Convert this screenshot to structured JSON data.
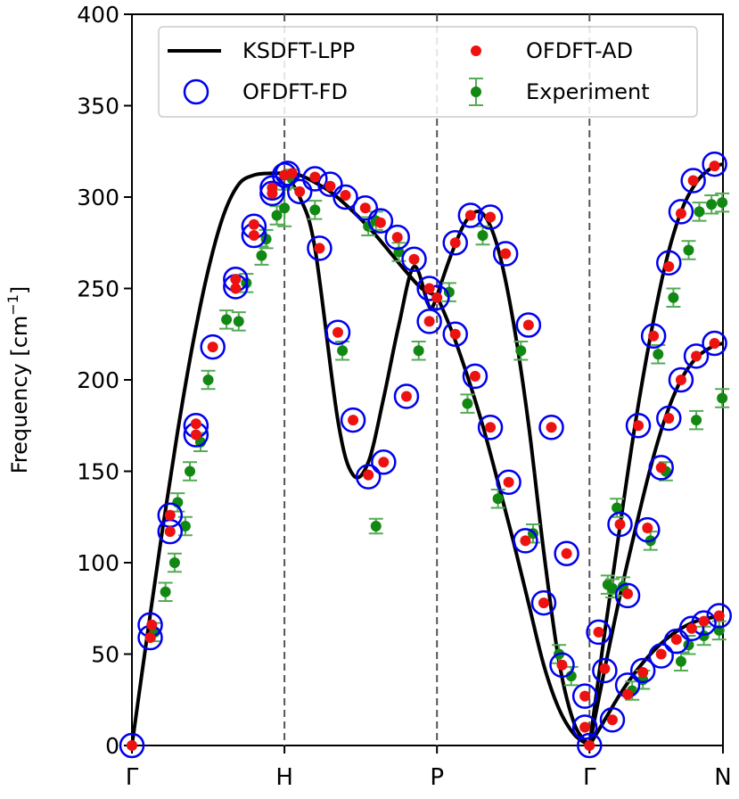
{
  "chart_data": {
    "type": "line",
    "title": "",
    "xlabel": "",
    "ylabel": "Frequency [cm",
    "ylabel_sup": "−1",
    "ylabel_suffix": "]",
    "ylim": [
      0,
      400
    ],
    "xlim": [
      0,
      3.875
    ],
    "yticks": [
      0,
      50,
      100,
      150,
      200,
      250,
      300,
      350,
      400
    ],
    "ytick_labels": [
      "0",
      "50",
      "100",
      "150",
      "200",
      "250",
      "300",
      "350",
      "400"
    ],
    "xticks": [
      0,
      1,
      2,
      3,
      3.875
    ],
    "xtick_labels": [
      "Γ",
      "H",
      "P",
      "Γ",
      "N"
    ],
    "vlines": [
      1,
      2,
      3
    ],
    "legend": {
      "position": "top",
      "entries": [
        {
          "label": "KSDFT-LPP",
          "style": "line"
        },
        {
          "label": "OFDFT-AD",
          "style": "dot"
        },
        {
          "label": "OFDFT-FD",
          "style": "circle"
        },
        {
          "label": "Experiment",
          "style": "errorbar"
        }
      ]
    },
    "series": [
      {
        "name": "KSDFT-LPP",
        "color": "#000000",
        "branches": [
          {
            "x": [
              0,
              0.1,
              0.2,
              0.3,
              0.4,
              0.5,
              0.6,
              0.7,
              0.8,
              0.9,
              1.0
            ],
            "y": [
              0,
              60,
              118,
              172,
              220,
              260,
              290,
              307,
              312,
              313,
              313
            ]
          },
          {
            "x": [
              1.0,
              1.1,
              1.2,
              1.3,
              1.4,
              1.5,
              1.6,
              1.7,
              1.8,
              1.9,
              2.0
            ],
            "y": [
              313,
              312,
              308,
              303,
              296,
              288,
              279,
              269,
              259,
              250,
              246
            ]
          },
          {
            "x": [
              1.0,
              1.1,
              1.2,
              1.35,
              1.45,
              1.55,
              1.65,
              1.75,
              1.85,
              1.95,
              2.0
            ],
            "y": [
              313,
              300,
              272,
              178,
              148,
              155,
              190,
              230,
              262,
              240,
              246
            ]
          },
          {
            "x": [
              2.0,
              2.1,
              2.2,
              2.3,
              2.4,
              2.5,
              2.6,
              2.7,
              2.8,
              2.9,
              3.0
            ],
            "y": [
              246,
              270,
              288,
              291,
              272,
              232,
              176,
              106,
              46,
              12,
              0
            ]
          },
          {
            "x": [
              2.0,
              2.1,
              2.2,
              2.3,
              2.4,
              2.5,
              2.6,
              2.7,
              2.8,
              2.9,
              3.0
            ],
            "y": [
              246,
              226,
              202,
              175,
              144,
              112,
              78,
              44,
              20,
              6,
              0
            ]
          },
          {
            "x": [
              3.0,
              3.1,
              3.2,
              3.3,
              3.4,
              3.5,
              3.6,
              3.7,
              3.8,
              3.875
            ],
            "y": [
              0,
              62,
              120,
              176,
              224,
              264,
              292,
              308,
              316,
              318
            ]
          },
          {
            "x": [
              3.0,
              3.1,
              3.2,
              3.3,
              3.4,
              3.5,
              3.6,
              3.7,
              3.8,
              3.875
            ],
            "y": [
              0,
              42,
              82,
              118,
              152,
              180,
              200,
              212,
              218,
              220
            ]
          },
          {
            "x": [
              3.0,
              3.1,
              3.2,
              3.3,
              3.4,
              3.5,
              3.6,
              3.7,
              3.8,
              3.875
            ],
            "y": [
              0,
              14,
              28,
              40,
              50,
              58,
              64,
              68,
              70,
              71
            ]
          }
        ]
      },
      {
        "name": "OFDFT-FD",
        "color": "#0000ee",
        "points": [
          [
            0,
            0
          ],
          [
            0.12,
            66
          ],
          [
            0.12,
            59
          ],
          [
            0.25,
            126
          ],
          [
            0.25,
            117
          ],
          [
            0.42,
            175
          ],
          [
            0.42,
            170
          ],
          [
            0.53,
            218
          ],
          [
            0.68,
            255
          ],
          [
            0.68,
            251
          ],
          [
            0.8,
            284
          ],
          [
            0.8,
            279
          ],
          [
            0.92,
            305
          ],
          [
            0.92,
            302
          ],
          [
            1.0,
            312
          ],
          [
            1.02,
            313
          ],
          [
            1.1,
            303
          ],
          [
            1.2,
            310
          ],
          [
            1.3,
            307
          ],
          [
            1.4,
            300
          ],
          [
            1.53,
            294
          ],
          [
            1.63,
            287
          ],
          [
            1.74,
            278
          ],
          [
            1.85,
            266
          ],
          [
            1.95,
            250
          ],
          [
            1.23,
            272
          ],
          [
            1.35,
            226
          ],
          [
            1.45,
            178
          ],
          [
            1.55,
            147
          ],
          [
            1.65,
            155
          ],
          [
            1.8,
            191
          ],
          [
            1.95,
            232
          ],
          [
            2.0,
            245
          ],
          [
            2.12,
            275
          ],
          [
            2.22,
            290
          ],
          [
            2.35,
            289
          ],
          [
            2.45,
            269
          ],
          [
            2.6,
            230
          ],
          [
            2.75,
            174
          ],
          [
            2.85,
            105
          ],
          [
            2.97,
            27
          ],
          [
            2.12,
            225
          ],
          [
            2.25,
            202
          ],
          [
            2.35,
            174
          ],
          [
            2.47,
            144
          ],
          [
            2.58,
            112
          ],
          [
            2.7,
            78
          ],
          [
            2.82,
            44
          ],
          [
            2.97,
            10
          ],
          [
            3.0,
            0
          ],
          [
            3.06,
            62
          ],
          [
            3.1,
            41
          ],
          [
            3.15,
            14
          ],
          [
            3.2,
            121
          ],
          [
            3.25,
            82
          ],
          [
            3.32,
            175
          ],
          [
            3.38,
            118
          ],
          [
            3.42,
            224
          ],
          [
            3.47,
            152
          ],
          [
            3.52,
            264
          ],
          [
            3.52,
            179
          ],
          [
            3.6,
            292
          ],
          [
            3.6,
            200
          ],
          [
            3.68,
            309
          ],
          [
            3.7,
            213
          ],
          [
            3.82,
            318
          ],
          [
            3.82,
            220
          ],
          [
            3.25,
            33
          ],
          [
            3.35,
            41
          ],
          [
            3.47,
            49
          ],
          [
            3.57,
            57
          ],
          [
            3.67,
            64
          ],
          [
            3.75,
            67
          ],
          [
            3.85,
            71
          ]
        ]
      },
      {
        "name": "OFDFT-AD",
        "color": "#ee1111",
        "points": [
          [
            0,
            0
          ],
          [
            0.12,
            59
          ],
          [
            0.13,
            66
          ],
          [
            0.25,
            126
          ],
          [
            0.25,
            117
          ],
          [
            0.42,
            176
          ],
          [
            0.42,
            170
          ],
          [
            0.53,
            218
          ],
          [
            0.68,
            255
          ],
          [
            0.68,
            250
          ],
          [
            0.8,
            285
          ],
          [
            0.8,
            279
          ],
          [
            0.92,
            305
          ],
          [
            0.92,
            302
          ],
          [
            1.0,
            312
          ],
          [
            1.05,
            313
          ],
          [
            1.1,
            303
          ],
          [
            1.2,
            311
          ],
          [
            1.3,
            306
          ],
          [
            1.4,
            301
          ],
          [
            1.53,
            294
          ],
          [
            1.63,
            286
          ],
          [
            1.74,
            278
          ],
          [
            1.85,
            266
          ],
          [
            1.95,
            250
          ],
          [
            1.23,
            272
          ],
          [
            1.35,
            226
          ],
          [
            1.45,
            178
          ],
          [
            1.55,
            148
          ],
          [
            1.65,
            155
          ],
          [
            1.8,
            191
          ],
          [
            1.95,
            232
          ],
          [
            2.0,
            245
          ],
          [
            2.12,
            275
          ],
          [
            2.22,
            290
          ],
          [
            2.35,
            289
          ],
          [
            2.45,
            269
          ],
          [
            2.6,
            230
          ],
          [
            2.75,
            174
          ],
          [
            2.85,
            105
          ],
          [
            2.97,
            27
          ],
          [
            2.12,
            225
          ],
          [
            2.25,
            202
          ],
          [
            2.35,
            174
          ],
          [
            2.47,
            144
          ],
          [
            2.58,
            112
          ],
          [
            2.7,
            78
          ],
          [
            2.82,
            44
          ],
          [
            2.97,
            10
          ],
          [
            3.0,
            0
          ],
          [
            3.06,
            62
          ],
          [
            3.1,
            42
          ],
          [
            3.15,
            14
          ],
          [
            3.2,
            121
          ],
          [
            3.25,
            83
          ],
          [
            3.32,
            175
          ],
          [
            3.38,
            119
          ],
          [
            3.42,
            224
          ],
          [
            3.47,
            152
          ],
          [
            3.52,
            262
          ],
          [
            3.52,
            179
          ],
          [
            3.6,
            291
          ],
          [
            3.6,
            200
          ],
          [
            3.68,
            309
          ],
          [
            3.7,
            213
          ],
          [
            3.82,
            317
          ],
          [
            3.82,
            220
          ],
          [
            3.25,
            28
          ],
          [
            3.35,
            40
          ],
          [
            3.47,
            50
          ],
          [
            3.57,
            58
          ],
          [
            3.67,
            64
          ],
          [
            3.75,
            68
          ],
          [
            3.85,
            71
          ]
        ]
      },
      {
        "name": "Experiment",
        "color": "#118811",
        "errbar_color": "#55aa55",
        "points": [
          [
            0.15,
            62,
            5
          ],
          [
            0.22,
            84,
            5
          ],
          [
            0.28,
            100,
            5
          ],
          [
            0.3,
            133,
            5
          ],
          [
            0.35,
            120,
            5
          ],
          [
            0.38,
            150,
            5
          ],
          [
            0.45,
            166,
            5
          ],
          [
            0.5,
            200,
            5
          ],
          [
            0.62,
            233,
            5
          ],
          [
            0.7,
            232,
            5
          ],
          [
            0.75,
            253,
            5
          ],
          [
            0.85,
            268,
            5
          ],
          [
            0.88,
            277,
            5
          ],
          [
            0.95,
            290,
            5
          ],
          [
            1.0,
            294,
            10
          ],
          [
            1.05,
            310,
            5
          ],
          [
            1.2,
            293,
            5
          ],
          [
            1.38,
            216,
            5
          ],
          [
            1.55,
            284,
            5
          ],
          [
            1.6,
            287,
            5
          ],
          [
            1.75,
            270,
            5
          ],
          [
            1.88,
            216,
            5
          ],
          [
            1.6,
            120,
            4
          ],
          [
            2.08,
            248,
            5
          ],
          [
            2.2,
            187,
            5
          ],
          [
            2.3,
            279,
            5
          ],
          [
            2.4,
            135,
            5
          ],
          [
            2.55,
            216,
            5
          ],
          [
            2.63,
            116,
            5
          ],
          [
            2.8,
            50,
            5
          ],
          [
            2.88,
            38,
            5
          ],
          [
            3.12,
            88,
            5
          ],
          [
            3.15,
            86,
            5
          ],
          [
            3.18,
            130,
            5
          ],
          [
            3.22,
            87,
            5
          ],
          [
            3.28,
            30,
            5
          ],
          [
            3.35,
            36,
            5
          ],
          [
            3.4,
            112,
            5
          ],
          [
            3.45,
            214,
            5
          ],
          [
            3.5,
            150,
            5
          ],
          [
            3.55,
            245,
            5
          ],
          [
            3.6,
            46,
            5
          ],
          [
            3.65,
            271,
            5
          ],
          [
            3.65,
            55,
            5
          ],
          [
            3.7,
            178,
            5
          ],
          [
            3.72,
            292,
            5
          ],
          [
            3.75,
            60,
            5
          ],
          [
            3.8,
            296,
            5
          ],
          [
            3.85,
            63,
            5
          ],
          [
            3.87,
            190,
            5
          ],
          [
            3.87,
            297,
            5
          ]
        ]
      }
    ]
  }
}
